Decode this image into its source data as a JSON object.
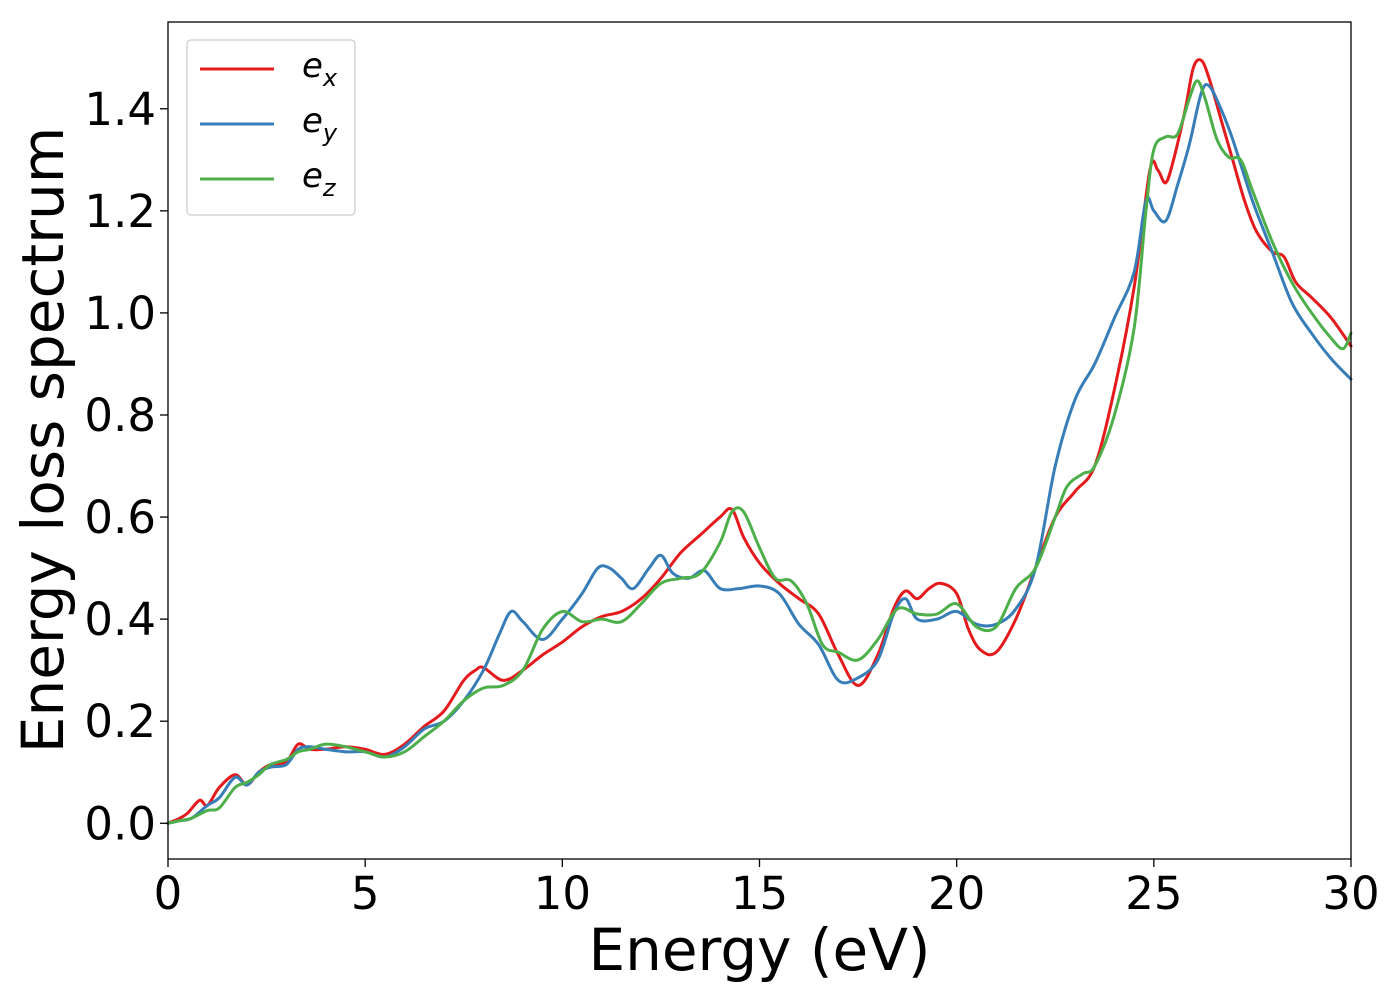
{
  "chart_data": {
    "type": "line",
    "xlabel": "Energy (eV)",
    "ylabel": "Energy loss spectrum",
    "xlim": [
      0,
      30
    ],
    "ylim": [
      -0.07,
      1.57
    ],
    "xticks": [
      0,
      5,
      10,
      15,
      20,
      25,
      30
    ],
    "xtick_labels": [
      "0",
      "5",
      "10",
      "15",
      "20",
      "25",
      "30"
    ],
    "yticks": [
      0.0,
      0.2,
      0.4,
      0.6,
      0.8,
      1.0,
      1.2,
      1.4
    ],
    "ytick_labels": [
      "0.0",
      "0.2",
      "0.4",
      "0.6",
      "0.8",
      "1.0",
      "1.2",
      "1.4"
    ],
    "grid": false,
    "legend_position": "top-left",
    "series": [
      {
        "name": "e",
        "subscript": "x",
        "color": "#e41a1c",
        "x": [
          0,
          0.3,
          0.5,
          0.8,
          1.0,
          1.3,
          1.7,
          2.0,
          2.3,
          2.6,
          3.0,
          3.3,
          3.6,
          4.0,
          4.5,
          5.0,
          5.5,
          6.0,
          6.5,
          7.0,
          7.5,
          7.8,
          8.0,
          8.5,
          9.0,
          9.5,
          10.0,
          10.5,
          11.0,
          11.5,
          12.0,
          12.5,
          13.0,
          13.5,
          14.0,
          14.3,
          14.6,
          15.0,
          15.5,
          16.0,
          16.5,
          17.0,
          17.5,
          18.0,
          18.4,
          18.7,
          19.0,
          19.3,
          19.6,
          20.0,
          20.3,
          20.6,
          21.0,
          21.5,
          22.0,
          22.5,
          23.0,
          23.5,
          24.0,
          24.5,
          24.9,
          25.1,
          25.3,
          25.5,
          25.8,
          26.0,
          26.2,
          26.4,
          26.7,
          27.0,
          27.3,
          27.6,
          28.0,
          28.3,
          28.6,
          29.0,
          29.5,
          30.0
        ],
        "values": [
          0.0,
          0.01,
          0.02,
          0.045,
          0.035,
          0.07,
          0.095,
          0.075,
          0.1,
          0.115,
          0.12,
          0.155,
          0.145,
          0.145,
          0.15,
          0.145,
          0.135,
          0.155,
          0.19,
          0.22,
          0.28,
          0.3,
          0.305,
          0.28,
          0.3,
          0.33,
          0.355,
          0.385,
          0.405,
          0.415,
          0.44,
          0.48,
          0.53,
          0.565,
          0.6,
          0.615,
          0.56,
          0.51,
          0.47,
          0.44,
          0.41,
          0.33,
          0.27,
          0.33,
          0.42,
          0.455,
          0.44,
          0.46,
          0.47,
          0.45,
          0.38,
          0.34,
          0.335,
          0.4,
          0.5,
          0.6,
          0.65,
          0.7,
          0.85,
          1.05,
          1.28,
          1.28,
          1.255,
          1.3,
          1.4,
          1.48,
          1.495,
          1.46,
          1.38,
          1.3,
          1.22,
          1.16,
          1.12,
          1.11,
          1.06,
          1.03,
          0.99,
          0.935
        ]
      },
      {
        "name": "e",
        "subscript": "y",
        "color": "#377eb8",
        "x": [
          0,
          0.3,
          0.6,
          1.0,
          1.3,
          1.7,
          2.0,
          2.3,
          2.6,
          3.0,
          3.3,
          3.6,
          4.0,
          4.5,
          5.0,
          5.5,
          6.0,
          6.5,
          7.0,
          7.5,
          8.0,
          8.4,
          8.7,
          9.0,
          9.5,
          10.0,
          10.5,
          10.9,
          11.2,
          11.5,
          11.8,
          12.2,
          12.5,
          12.8,
          13.2,
          13.6,
          14.0,
          14.5,
          15.0,
          15.5,
          16.0,
          16.5,
          17.0,
          17.5,
          18.0,
          18.4,
          18.7,
          19.0,
          19.5,
          20.0,
          20.5,
          21.0,
          21.5,
          22.0,
          22.5,
          23.0,
          23.5,
          24.0,
          24.5,
          24.8,
          25.0,
          25.3,
          25.6,
          25.9,
          26.2,
          26.4,
          26.7,
          27.0,
          27.5,
          28.0,
          28.5,
          29.0,
          29.5,
          30.0
        ],
        "values": [
          0.0,
          0.005,
          0.01,
          0.035,
          0.05,
          0.09,
          0.075,
          0.1,
          0.11,
          0.115,
          0.145,
          0.15,
          0.145,
          0.14,
          0.14,
          0.13,
          0.15,
          0.185,
          0.2,
          0.24,
          0.3,
          0.37,
          0.415,
          0.395,
          0.36,
          0.4,
          0.45,
          0.5,
          0.5,
          0.48,
          0.46,
          0.5,
          0.525,
          0.49,
          0.48,
          0.495,
          0.46,
          0.46,
          0.465,
          0.45,
          0.39,
          0.35,
          0.28,
          0.285,
          0.32,
          0.41,
          0.44,
          0.4,
          0.4,
          0.415,
          0.39,
          0.39,
          0.42,
          0.5,
          0.7,
          0.83,
          0.9,
          0.99,
          1.08,
          1.22,
          1.2,
          1.18,
          1.25,
          1.33,
          1.43,
          1.445,
          1.4,
          1.34,
          1.22,
          1.12,
          1.02,
          0.96,
          0.91,
          0.87
        ]
      },
      {
        "name": "e",
        "subscript": "z",
        "color": "#4daf4a",
        "x": [
          0,
          0.3,
          0.6,
          1.0,
          1.3,
          1.7,
          2.0,
          2.3,
          2.6,
          3.0,
          3.3,
          3.6,
          4.0,
          4.5,
          5.0,
          5.5,
          6.0,
          6.5,
          7.0,
          7.5,
          8.0,
          8.5,
          9.0,
          9.5,
          10.0,
          10.5,
          11.0,
          11.5,
          12.0,
          12.5,
          13.0,
          13.5,
          14.0,
          14.3,
          14.6,
          15.0,
          15.4,
          15.8,
          16.2,
          16.6,
          17.0,
          17.5,
          18.0,
          18.5,
          19.0,
          19.5,
          20.0,
          20.5,
          21.0,
          21.5,
          22.0,
          22.5,
          22.8,
          23.2,
          23.5,
          24.0,
          24.5,
          24.8,
          25.0,
          25.3,
          25.6,
          25.9,
          26.1,
          26.3,
          26.6,
          26.9,
          27.2,
          27.5,
          28.0,
          28.5,
          29.0,
          29.5,
          29.8,
          30.0
        ],
        "values": [
          0.0,
          0.005,
          0.01,
          0.025,
          0.03,
          0.07,
          0.08,
          0.095,
          0.115,
          0.125,
          0.14,
          0.145,
          0.155,
          0.15,
          0.14,
          0.13,
          0.14,
          0.17,
          0.2,
          0.24,
          0.265,
          0.27,
          0.3,
          0.38,
          0.415,
          0.395,
          0.4,
          0.395,
          0.43,
          0.47,
          0.48,
          0.49,
          0.55,
          0.61,
          0.61,
          0.54,
          0.48,
          0.475,
          0.43,
          0.35,
          0.335,
          0.32,
          0.36,
          0.42,
          0.41,
          0.41,
          0.43,
          0.385,
          0.385,
          0.46,
          0.5,
          0.6,
          0.66,
          0.685,
          0.7,
          0.8,
          0.97,
          1.2,
          1.32,
          1.345,
          1.35,
          1.42,
          1.455,
          1.42,
          1.34,
          1.305,
          1.3,
          1.24,
          1.14,
          1.06,
          1.0,
          0.95,
          0.93,
          0.96
        ]
      }
    ]
  }
}
